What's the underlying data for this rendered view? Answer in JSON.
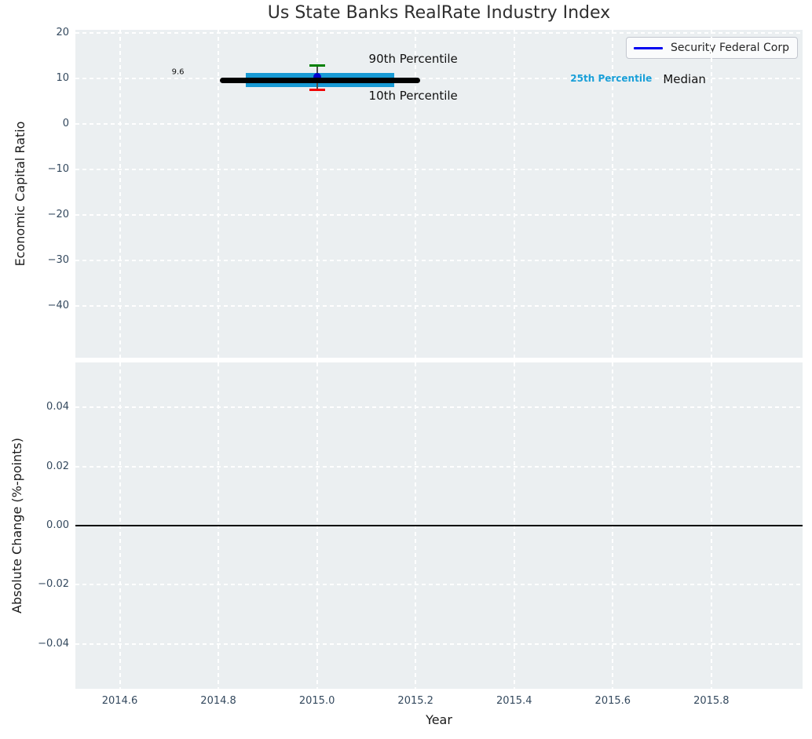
{
  "figure": {
    "title": "Us State Banks RealRate Industry Index",
    "background_color": "#ffffff",
    "plot_background_color": "#ebeff1",
    "grid_color": "#ffffff",
    "tick_label_color": "#34495e",
    "text_color": "#1a1a1a"
  },
  "legend": {
    "label": "Security Federal Corp",
    "line_color": "#0000f0",
    "position": "upper-right"
  },
  "chart_data": [
    {
      "id": "economic-capital-ratio-panel",
      "type": "scatter",
      "title": "Us State Banks RealRate Industry Index",
      "xlabel": "",
      "ylabel": "Economic Capital Ratio",
      "xlim": [
        2014.51,
        2015.985
      ],
      "ylim": [
        -51.3,
        20.7
      ],
      "grid": true,
      "legend_position": "upper right",
      "xticks": {
        "values": [
          2014.6,
          2014.8,
          2015.0,
          2015.2,
          2015.4,
          2015.6,
          2015.8
        ],
        "labels": [
          "2014.6",
          "2014.8",
          "2015.0",
          "2015.2",
          "2015.4",
          "2015.6",
          "2015.8"
        ],
        "show_labels": false
      },
      "yticks": {
        "values": [
          20,
          10,
          0,
          -10,
          -20,
          -30,
          -40
        ],
        "labels": [
          "20",
          "10",
          "0",
          "−10",
          "−20",
          "−30",
          "−40"
        ]
      },
      "elements": {
        "percentile_band": {
          "label": "25th Percentile",
          "x_start": 2014.856,
          "x_end": 2015.156,
          "y_low": 8.1,
          "y_high": 11.3,
          "color": "#189ad4"
        },
        "median_line": {
          "label": "Median",
          "value": 9.6,
          "x_start": 2014.803,
          "x_end": 2015.21,
          "color": "#000000"
        },
        "whisker": {
          "x": 2015.0,
          "p90": 12.8,
          "p10": 7.5,
          "p90_label": "90th Percentile",
          "p10_label": "10th Percentile",
          "line_color": "#4d4d4d",
          "p90_cap_color": "#008000",
          "p10_cap_color": "#f00000"
        },
        "company_point": {
          "name": "Security Federal Corp",
          "x": 2015.0,
          "value": 10.3,
          "color": "#0000cd"
        }
      },
      "annotations": [
        {
          "text": "9.6",
          "x": 2014.718,
          "y": 11.4,
          "size": 10,
          "color": "#111111",
          "weight": "normal",
          "anchor": "middle"
        },
        {
          "text": "90th Percentile",
          "x": 2015.105,
          "y": 14.4,
          "size": 15,
          "color": "#111111",
          "weight": "normal",
          "anchor": "start"
        },
        {
          "text": "10th Percentile",
          "x": 2015.105,
          "y": 6.3,
          "size": 15,
          "color": "#111111",
          "weight": "normal",
          "anchor": "start"
        },
        {
          "text": "25th Percentile",
          "x": 2015.514,
          "y": 10.0,
          "size": 12,
          "color": "#199fd8",
          "weight": "bold",
          "anchor": "start"
        },
        {
          "text": "Median",
          "x": 2015.702,
          "y": 9.8,
          "size": 15,
          "color": "#111111",
          "weight": "normal",
          "anchor": "start"
        }
      ]
    },
    {
      "id": "absolute-change-panel",
      "type": "line",
      "xlabel": "Year",
      "ylabel": "Absolute Change (%-points)",
      "xlim": [
        2014.51,
        2015.985
      ],
      "ylim": [
        -0.0552,
        0.0552
      ],
      "grid": true,
      "xticks": {
        "values": [
          2014.6,
          2014.8,
          2015.0,
          2015.2,
          2015.4,
          2015.6,
          2015.8
        ],
        "labels": [
          "2014.6",
          "2014.8",
          "2015.0",
          "2015.2",
          "2015.4",
          "2015.6",
          "2015.8"
        ],
        "show_labels": true
      },
      "yticks": {
        "values": [
          0.04,
          0.02,
          0.0,
          -0.02,
          -0.04
        ],
        "labels": [
          "0.04",
          "0.02",
          "0.00",
          "−0.02",
          "−0.04"
        ]
      },
      "zero_line": {
        "y": 0.0,
        "color": "#000000"
      },
      "series": []
    }
  ]
}
